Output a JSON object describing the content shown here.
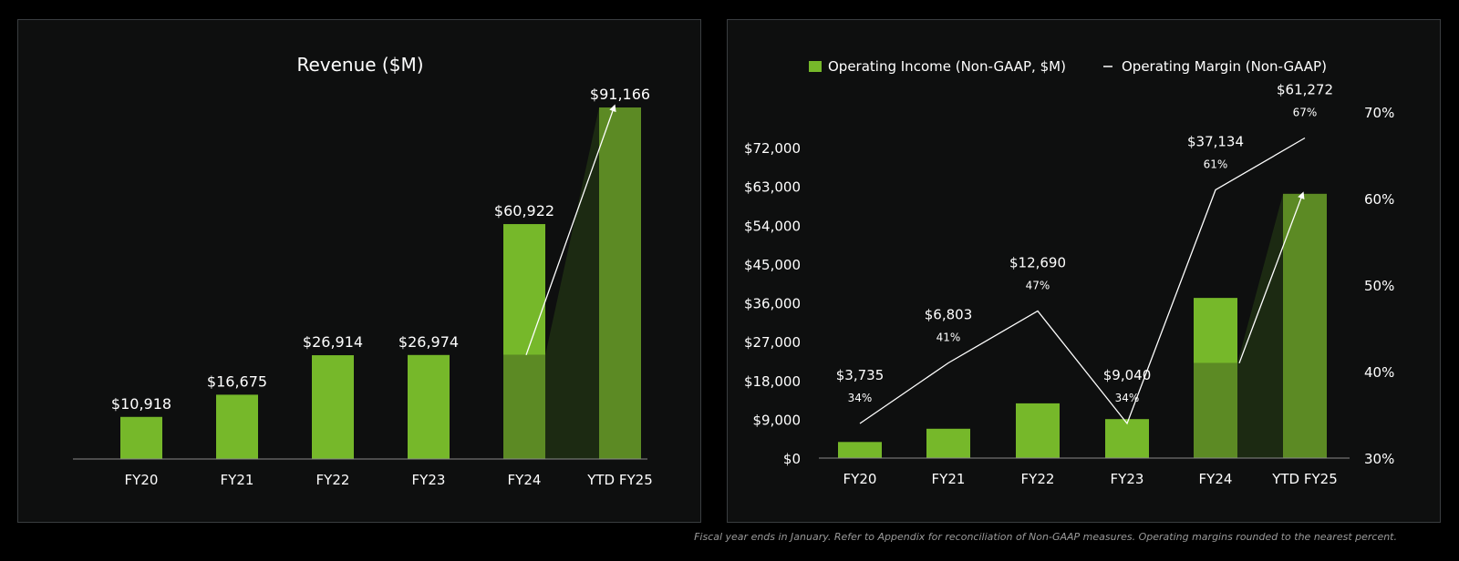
{
  "colors": {
    "bar": "#76b82a",
    "bar_dark": "#5c8a24",
    "shade": "#1c2a12",
    "text": "#ffffff",
    "axis": "#8a8a8a",
    "footnote": "#9a9a9a"
  },
  "footnote": "Fiscal year ends in January. Refer to Appendix for reconciliation of Non-GAAP measures. Operating margins rounded to the nearest percent.",
  "chart_data": [
    {
      "type": "bar",
      "title": "Revenue ($M)",
      "categories": [
        "FY20",
        "FY21",
        "FY22",
        "FY23",
        "FY24",
        "YTD FY25"
      ],
      "values": [
        10918,
        16675,
        26914,
        26974,
        60922,
        91166
      ],
      "value_labels": [
        "$10,918",
        "$16,675",
        "$26,914",
        "$26,974",
        "$60,922",
        "$91,166"
      ],
      "ylim": [
        0,
        95000
      ],
      "grid": false,
      "highlight": {
        "from_index": 4,
        "base_value": 26974
      }
    },
    {
      "type": "bar",
      "legend": [
        "Operating Income (Non-GAAP, $M)",
        "Operating Margin (Non-GAAP)"
      ],
      "legend_position": "top",
      "categories": [
        "FY20",
        "FY21",
        "FY22",
        "FY23",
        "FY24",
        "YTD FY25"
      ],
      "series": [
        {
          "name": "Operating Income (Non-GAAP, $M)",
          "type": "bar",
          "values": [
            3735,
            6803,
            12690,
            9040,
            37134,
            61272
          ],
          "value_labels": [
            "$3,735",
            "$6,803",
            "$12,690",
            "$9,040",
            "$37,134",
            "$61,272"
          ]
        },
        {
          "name": "Operating Margin (Non-GAAP)",
          "type": "line",
          "axis": "right",
          "values": [
            34,
            41,
            47,
            34,
            61,
            67
          ],
          "value_labels": [
            "34%",
            "41%",
            "47%",
            "34%",
            "61%",
            "67%"
          ]
        }
      ],
      "y_ticks": [
        "$0",
        "$9,000",
        "$18,000",
        "$27,000",
        "$36,000",
        "$45,000",
        "$54,000",
        "$63,000",
        "$72,000"
      ],
      "y_tick_values": [
        0,
        9000,
        18000,
        27000,
        36000,
        45000,
        54000,
        63000,
        72000
      ],
      "ylim": [
        0,
        72000
      ],
      "y2_ticks": [
        "30%",
        "40%",
        "50%",
        "60%",
        "70%"
      ],
      "y2_tick_values": [
        30,
        40,
        50,
        60,
        70
      ],
      "y2lim": [
        30,
        70
      ],
      "grid": false,
      "highlight": {
        "from_index": 4,
        "base_value": 22000
      }
    }
  ]
}
